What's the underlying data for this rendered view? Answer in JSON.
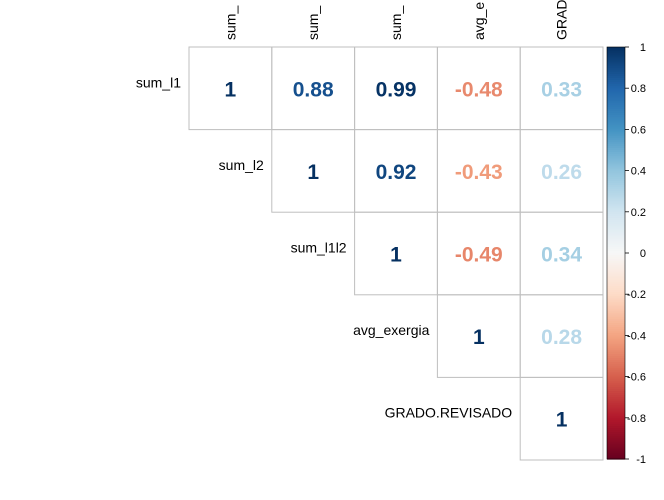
{
  "chart_data": {
    "type": "heatmap",
    "layout": "upper-triangle",
    "variables": [
      "sum_l1",
      "sum_l2",
      "sum_l1l2",
      "avg_exergia",
      "GRADO.REVISADO"
    ],
    "column_labels_visible": [
      "sum_",
      "sum_",
      "sum_",
      "avg_e",
      "GRAD"
    ],
    "matrix": [
      [
        1,
        0.88,
        0.99,
        -0.48,
        0.33
      ],
      [
        0.88,
        1,
        0.92,
        -0.43,
        0.26
      ],
      [
        0.99,
        0.92,
        1,
        -0.49,
        0.34
      ],
      [
        -0.48,
        -0.43,
        -0.49,
        1,
        0.28
      ],
      [
        0.33,
        0.26,
        0.34,
        0.28,
        1
      ]
    ],
    "cell_labels": [
      [
        "1",
        "0.88",
        "0.99",
        "-0.48",
        "0.33"
      ],
      [
        "",
        "1",
        "0.92",
        "-0.43",
        "0.26"
      ],
      [
        "",
        "",
        "1",
        "-0.49",
        "0.34"
      ],
      [
        "",
        "",
        "",
        "1",
        "0.28"
      ],
      [
        "",
        "",
        "",
        "",
        "1"
      ]
    ],
    "colorbar": {
      "range": [
        -1,
        1
      ],
      "ticks": [
        "1",
        "0.8",
        "0.6",
        "0.4",
        "0.2",
        "0",
        "-0.2",
        "-0.4",
        "-0.6",
        "-0.8",
        "-1"
      ],
      "palette": [
        "#67001F",
        "#B2182B",
        "#D6604D",
        "#F4A582",
        "#FDDBC7",
        "#F7F7F7",
        "#D1E5F0",
        "#92C5DE",
        "#4393C3",
        "#2166AC",
        "#053061"
      ]
    },
    "grid": true
  }
}
